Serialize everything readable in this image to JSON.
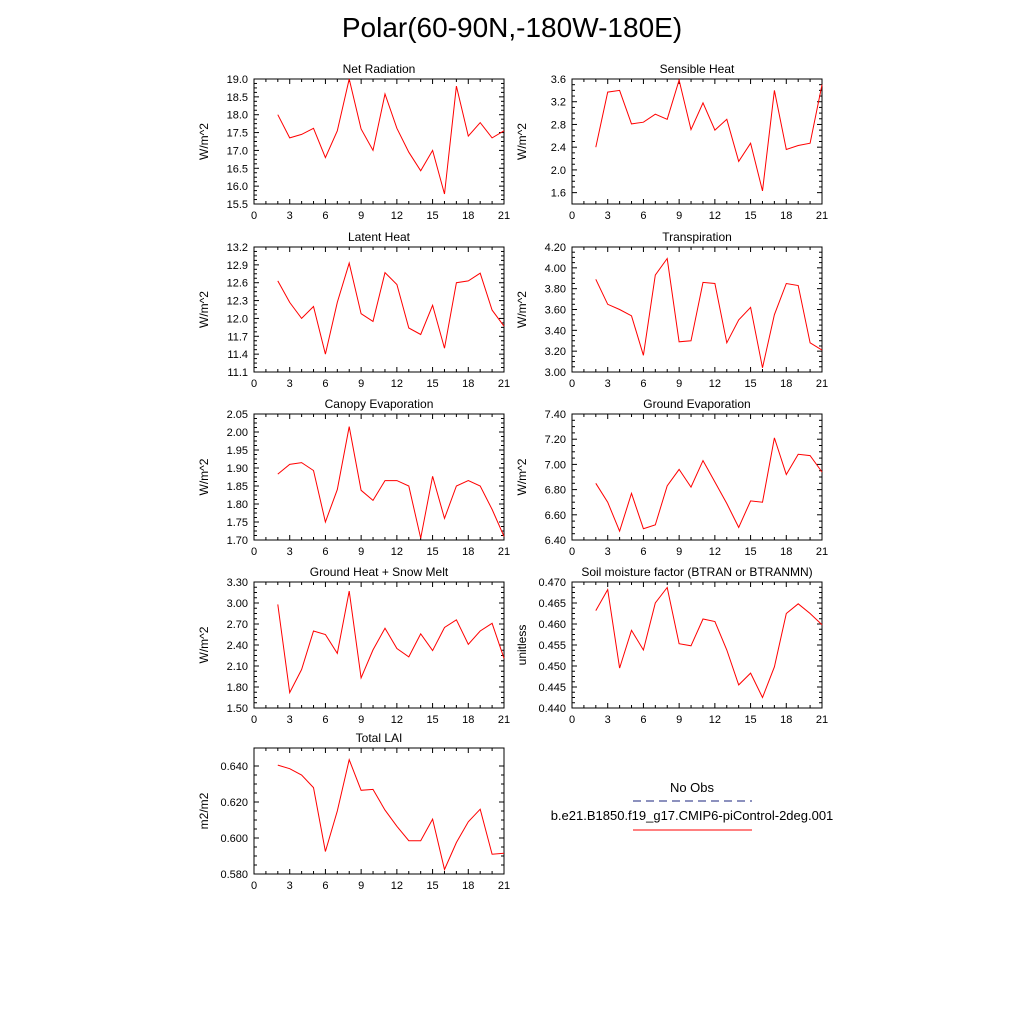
{
  "title": "Polar(60-90N,-180W-180E)",
  "legend": {
    "entries": [
      {
        "label": "No Obs",
        "color": "#1a237e",
        "dash": "dashed"
      },
      {
        "label": "b.e21.B1850.f19_g17.CMIP6-piControl-2deg.001",
        "color": "#ff0000",
        "dash": "solid"
      }
    ]
  },
  "chart_data": [
    {
      "type": "line",
      "title": "Net Radiation",
      "xlabel": "",
      "ylabel": "W/m^2",
      "xlim": [
        0,
        21
      ],
      "ylim": [
        15.5,
        19.0
      ],
      "xticks": [
        "0",
        "3",
        "6",
        "9",
        "12",
        "15",
        "18",
        "21"
      ],
      "yticks": [
        "15.5",
        "16.0",
        "16.5",
        "17.0",
        "17.5",
        "18.0",
        "18.5",
        "19.0"
      ],
      "series": [
        {
          "color": "#ff0000",
          "x": [
            2,
            3,
            4,
            5,
            6,
            7,
            8,
            9,
            10,
            11,
            12,
            13,
            14,
            15,
            16,
            17,
            18,
            19,
            20,
            21
          ],
          "y": [
            18.0,
            17.35,
            17.45,
            17.62,
            16.8,
            17.55,
            19.0,
            17.6,
            17.0,
            18.58,
            17.62,
            16.95,
            16.43,
            17.0,
            15.78,
            18.8,
            17.4,
            17.78,
            17.35,
            17.55
          ]
        }
      ]
    },
    {
      "type": "line",
      "title": "Sensible Heat",
      "xlabel": "",
      "ylabel": "W/m^2",
      "xlim": [
        0,
        21
      ],
      "ylim": [
        1.4,
        3.6
      ],
      "xticks": [
        "0",
        "3",
        "6",
        "9",
        "12",
        "15",
        "18",
        "21"
      ],
      "yticks": [
        "1.6",
        "2.0",
        "2.4",
        "2.8",
        "3.2",
        "3.6"
      ],
      "series": [
        {
          "color": "#ff0000",
          "x": [
            2,
            3,
            4,
            5,
            6,
            7,
            8,
            9,
            10,
            11,
            12,
            13,
            14,
            15,
            16,
            17,
            18,
            19,
            20,
            21
          ],
          "y": [
            2.4,
            3.37,
            3.4,
            2.81,
            2.84,
            2.98,
            2.89,
            3.58,
            2.71,
            3.18,
            2.7,
            2.89,
            2.15,
            2.47,
            1.63,
            3.4,
            2.36,
            2.43,
            2.47,
            3.5
          ]
        }
      ]
    },
    {
      "type": "line",
      "title": "Latent Heat",
      "xlabel": "",
      "ylabel": "W/m^2",
      "xlim": [
        0,
        21
      ],
      "ylim": [
        11.1,
        13.2
      ],
      "xticks": [
        "0",
        "3",
        "6",
        "9",
        "12",
        "15",
        "18",
        "21"
      ],
      "yticks": [
        "11.1",
        "11.4",
        "11.7",
        "12.0",
        "12.3",
        "12.6",
        "12.9",
        "13.2"
      ],
      "series": [
        {
          "color": "#ff0000",
          "x": [
            2,
            3,
            4,
            5,
            6,
            7,
            8,
            9,
            10,
            11,
            12,
            13,
            14,
            15,
            16,
            17,
            18,
            19,
            20,
            21
          ],
          "y": [
            12.63,
            12.27,
            12.0,
            12.2,
            11.4,
            12.27,
            12.93,
            12.08,
            11.95,
            12.77,
            12.57,
            11.84,
            11.73,
            12.22,
            11.5,
            12.6,
            12.63,
            12.76,
            12.14,
            11.87
          ]
        }
      ]
    },
    {
      "type": "line",
      "title": "Transpiration",
      "xlabel": "",
      "ylabel": "W/m^2",
      "xlim": [
        0,
        21
      ],
      "ylim": [
        3.0,
        4.2
      ],
      "xticks": [
        "0",
        "3",
        "6",
        "9",
        "12",
        "15",
        "18",
        "21"
      ],
      "yticks": [
        "3.00",
        "3.20",
        "3.40",
        "3.60",
        "3.80",
        "4.00",
        "4.20"
      ],
      "series": [
        {
          "color": "#ff0000",
          "x": [
            2,
            3,
            4,
            5,
            6,
            7,
            8,
            9,
            10,
            11,
            12,
            13,
            14,
            15,
            16,
            17,
            18,
            19,
            20,
            21
          ],
          "y": [
            3.89,
            3.65,
            3.6,
            3.54,
            3.16,
            3.93,
            4.09,
            3.29,
            3.3,
            3.86,
            3.85,
            3.28,
            3.5,
            3.62,
            3.04,
            3.55,
            3.85,
            3.83,
            3.28,
            3.21
          ]
        }
      ]
    },
    {
      "type": "line",
      "title": "Canopy Evaporation",
      "xlabel": "",
      "ylabel": "W/m^2",
      "xlim": [
        0,
        21
      ],
      "ylim": [
        1.7,
        2.05
      ],
      "xticks": [
        "0",
        "3",
        "6",
        "9",
        "12",
        "15",
        "18",
        "21"
      ],
      "yticks": [
        "1.70",
        "1.75",
        "1.80",
        "1.85",
        "1.90",
        "1.95",
        "2.00",
        "2.05"
      ],
      "series": [
        {
          "color": "#ff0000",
          "x": [
            2,
            3,
            4,
            5,
            6,
            7,
            8,
            9,
            10,
            11,
            12,
            13,
            14,
            15,
            16,
            17,
            18,
            19,
            20,
            21
          ],
          "y": [
            1.883,
            1.91,
            1.915,
            1.893,
            1.75,
            1.84,
            2.015,
            1.838,
            1.81,
            1.865,
            1.865,
            1.85,
            1.705,
            1.877,
            1.76,
            1.85,
            1.865,
            1.85,
            1.785,
            1.71
          ]
        }
      ]
    },
    {
      "type": "line",
      "title": "Ground Evaporation",
      "xlabel": "",
      "ylabel": "W/m^2",
      "xlim": [
        0,
        21
      ],
      "ylim": [
        6.4,
        7.4
      ],
      "xticks": [
        "0",
        "3",
        "6",
        "9",
        "12",
        "15",
        "18",
        "21"
      ],
      "yticks": [
        "6.40",
        "6.60",
        "6.80",
        "7.00",
        "7.20",
        "7.40"
      ],
      "series": [
        {
          "color": "#ff0000",
          "x": [
            2,
            3,
            4,
            5,
            6,
            7,
            8,
            9,
            10,
            11,
            12,
            13,
            14,
            15,
            16,
            17,
            18,
            19,
            20,
            21
          ],
          "y": [
            6.85,
            6.7,
            6.47,
            6.77,
            6.49,
            6.52,
            6.83,
            6.96,
            6.82,
            7.03,
            6.86,
            6.69,
            6.5,
            6.71,
            6.7,
            7.21,
            6.92,
            7.08,
            7.07,
            6.94
          ]
        }
      ]
    },
    {
      "type": "line",
      "title": "Ground Heat + Snow Melt",
      "xlabel": "",
      "ylabel": "W/m^2",
      "xlim": [
        0,
        21
      ],
      "ylim": [
        1.5,
        3.3
      ],
      "xticks": [
        "0",
        "3",
        "6",
        "9",
        "12",
        "15",
        "18",
        "21"
      ],
      "yticks": [
        "1.50",
        "1.80",
        "2.10",
        "2.40",
        "2.70",
        "3.00",
        "3.30"
      ],
      "series": [
        {
          "color": "#ff0000",
          "x": [
            2,
            3,
            4,
            5,
            6,
            7,
            8,
            9,
            10,
            11,
            12,
            13,
            14,
            15,
            16,
            17,
            18,
            19,
            20,
            21
          ],
          "y": [
            2.98,
            1.72,
            2.05,
            2.6,
            2.55,
            2.28,
            3.17,
            1.93,
            2.33,
            2.64,
            2.35,
            2.23,
            2.56,
            2.32,
            2.65,
            2.76,
            2.41,
            2.6,
            2.71,
            2.21
          ]
        }
      ]
    },
    {
      "type": "line",
      "title": "Soil moisture factor (BTRAN or BTRANMN)",
      "xlabel": "",
      "ylabel": "unitless",
      "xlim": [
        0,
        21
      ],
      "ylim": [
        0.44,
        0.47
      ],
      "xticks": [
        "0",
        "3",
        "6",
        "9",
        "12",
        "15",
        "18",
        "21"
      ],
      "yticks": [
        "0.440",
        "0.445",
        "0.450",
        "0.455",
        "0.460",
        "0.465",
        "0.470"
      ],
      "series": [
        {
          "color": "#ff0000",
          "x": [
            2,
            3,
            4,
            5,
            6,
            7,
            8,
            9,
            10,
            11,
            12,
            13,
            14,
            15,
            16,
            17,
            18,
            19,
            20,
            21
          ],
          "y": [
            0.4632,
            0.4682,
            0.4495,
            0.4585,
            0.4538,
            0.465,
            0.4687,
            0.4553,
            0.4548,
            0.4612,
            0.4606,
            0.4538,
            0.4455,
            0.4483,
            0.4425,
            0.4498,
            0.4625,
            0.4648,
            0.4625,
            0.4598
          ]
        }
      ]
    },
    {
      "type": "line",
      "title": "Total LAI",
      "xlabel": "",
      "ylabel": "m2/m2",
      "xlim": [
        0,
        21
      ],
      "ylim": [
        0.58,
        0.65
      ],
      "xticks": [
        "0",
        "3",
        "6",
        "9",
        "12",
        "15",
        "18",
        "21"
      ],
      "yticks": [
        "0.580",
        "0.600",
        "0.620",
        "0.640"
      ],
      "series": [
        {
          "color": "#ff0000",
          "x": [
            2,
            3,
            4,
            5,
            6,
            7,
            8,
            9,
            10,
            11,
            12,
            13,
            14,
            15,
            16,
            17,
            18,
            19,
            20,
            21
          ],
          "y": [
            0.6405,
            0.6385,
            0.635,
            0.628,
            0.5925,
            0.615,
            0.6435,
            0.6265,
            0.627,
            0.6155,
            0.6065,
            0.5985,
            0.5985,
            0.6105,
            0.5825,
            0.5975,
            0.609,
            0.616,
            0.591,
            0.5915
          ]
        }
      ]
    }
  ]
}
